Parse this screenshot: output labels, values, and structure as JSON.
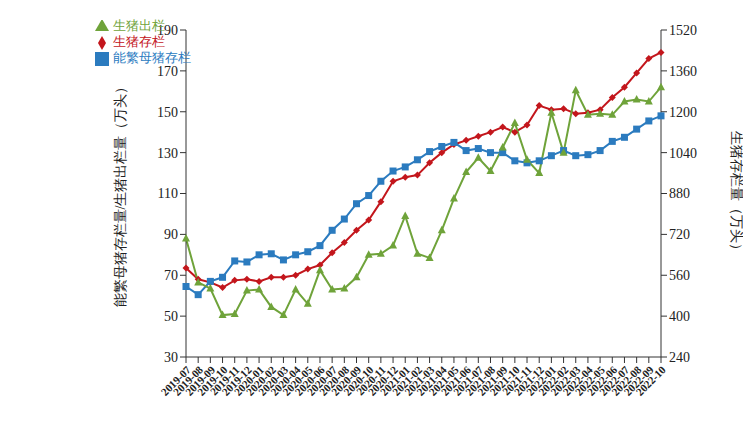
{
  "chart_data": {
    "type": "line",
    "categories": [
      "2019-07",
      "2019-08",
      "2019-09",
      "2019-10",
      "2019-11",
      "2019-12",
      "2020-01",
      "2020-02",
      "2020-03",
      "2020-04",
      "2020-05",
      "2020-06",
      "2020-07",
      "2020-08",
      "2020-09",
      "2020-10",
      "2020-11",
      "2020-12",
      "2021-01",
      "2021-02",
      "2021-03",
      "2021-04",
      "2021-05",
      "2021-06",
      "2021-07",
      "2021-08",
      "2021-09",
      "2021-10",
      "2021-11",
      "2021-12",
      "2022-01",
      "2022-02",
      "2022-03",
      "2022-04",
      "2022-05",
      "2022-06",
      "2022-07",
      "2022-08",
      "2022-09",
      "2022-10"
    ],
    "y_label": "能繁母猪存栏量/生猪出栏量（万头）",
    "y2_label": "生猪存栏量（万头）",
    "ylim": [
      30,
      190
    ],
    "yticks": [
      30,
      50,
      70,
      90,
      110,
      130,
      150,
      170,
      190
    ],
    "y2lim": [
      240,
      1520
    ],
    "y2ticks": [
      240,
      400,
      560,
      720,
      880,
      1040,
      1200,
      1360,
      1520
    ],
    "grid": false,
    "legend": "upper left",
    "series": [
      {
        "name": "生猪存栏",
        "color": "#c3161c",
        "marker": "diamond",
        "axis": "y2",
        "values": [
          588,
          544,
          532,
          512,
          540,
          544,
          536,
          552,
          552,
          560,
          584,
          600,
          648,
          688,
          736,
          776,
          848,
          928,
          944,
          952,
          1000,
          1040,
          1072,
          1088,
          1104,
          1120,
          1140,
          1120,
          1148,
          1224,
          1208,
          1212,
          1192,
          1196,
          1208,
          1256,
          1296,
          1352,
          1408,
          1432
        ]
      },
      {
        "name": "能繁母猪存栏",
        "color": "#2b7bbf",
        "marker": "square",
        "axis": "y",
        "values": [
          64.5,
          60.5,
          67,
          69,
          77,
          76.5,
          80,
          80.5,
          77.5,
          80,
          81.5,
          84.5,
          92,
          97.5,
          105,
          109,
          116,
          121,
          123,
          126.5,
          130.5,
          133,
          135,
          131,
          132,
          130,
          130,
          126,
          125,
          126,
          128.5,
          131,
          128.5,
          129,
          131,
          135.5,
          137.5,
          141.5,
          145.5,
          148
        ]
      },
      {
        "name": "生猪出栏",
        "color": "#6fa33a",
        "marker": "triangle",
        "axis": "y",
        "values": [
          88,
          66.5,
          63.5,
          50.5,
          51,
          62.5,
          63,
          54.5,
          50.5,
          63,
          56,
          72.5,
          63,
          63.5,
          69,
          80,
          80.5,
          84.5,
          99,
          80.5,
          78.5,
          92,
          107.5,
          120.5,
          127.5,
          121,
          132.5,
          144.5,
          126.5,
          120,
          149.5,
          130,
          160.5,
          148.5,
          149,
          148.5,
          155,
          156,
          155,
          162
        ]
      }
    ]
  }
}
